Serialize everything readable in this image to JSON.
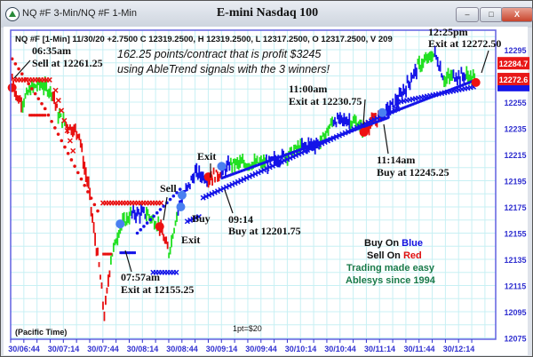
{
  "window": {
    "title": "NQ #F 3-Min/NQ #F 1-Min",
    "chart_title": "E-mini Nasdaq 100",
    "minimize_label": "–",
    "maximize_label": "□",
    "close_label": "X"
  },
  "colors": {
    "buy": "#1010e0",
    "sell": "#e01010",
    "neutral": "#22dd22",
    "grid": "#c8f0f4",
    "axis": "#3030d0",
    "brand": "#1a7a4a"
  },
  "chart_data": {
    "type": "candlestick-bars",
    "info_line": "NQ #F [1-Min] 11/30/20  +2.7500 C 12319.2500, H 12319.2500, L 12317.2500, O 12317.2500, V 209",
    "headline_1": "162.25 points/contract that is profit $3245",
    "headline_2": "using AbleTrend signals with the 3 winners!",
    "time_zone_label": "(Pacific Time)",
    "point_value_label": "1pt=$20",
    "x_ticks": [
      "30/06:44",
      "30/07:14",
      "30/07:44",
      "30/08:14",
      "30/08:44",
      "30/09:14",
      "30/09:44",
      "30/10:14",
      "30/10:44",
      "30/11:14",
      "30/11:44",
      "30/12:14"
    ],
    "y_ticks": [
      "12295",
      "12255",
      "12235",
      "12215",
      "12195",
      "12175",
      "12155",
      "12135",
      "12115",
      "12095",
      "12075"
    ],
    "ylim": [
      12075,
      12305
    ],
    "price_tags": [
      {
        "label": "12284.7",
        "price": 12284.7
      },
      {
        "label": "12272.6",
        "price": 12272.6
      }
    ],
    "prices": [
      [
        "06:35",
        12273,
        "red"
      ],
      [
        "06:39",
        12258,
        "red"
      ],
      [
        "06:43",
        12255,
        "green"
      ],
      [
        "06:49",
        12265,
        "green"
      ],
      [
        "06:56",
        12269,
        "green"
      ],
      [
        "07:06",
        12262,
        "red"
      ],
      [
        "07:10",
        12245,
        "green"
      ],
      [
        "07:16",
        12238,
        "red"
      ],
      [
        "07:26",
        12231,
        "red"
      ],
      [
        "07:30",
        12204,
        "red"
      ],
      [
        "07:33",
        12191,
        "red"
      ],
      [
        "07:37",
        12157,
        "red"
      ],
      [
        "07:41",
        12130,
        "red"
      ],
      [
        "07:45",
        12092,
        "red"
      ],
      [
        "07:50",
        12136,
        "green"
      ],
      [
        "07:57",
        12160,
        "green"
      ],
      [
        "08:06",
        12170,
        "blue"
      ],
      [
        "08:17",
        12170,
        "green"
      ],
      [
        "08:27",
        12160,
        "red"
      ],
      [
        "08:34",
        12140,
        "green"
      ],
      [
        "08:41",
        12174,
        "blue"
      ],
      [
        "08:47",
        12187,
        "blue"
      ],
      [
        "08:54",
        12201,
        "blue"
      ],
      [
        "09:04",
        12197,
        "red"
      ],
      [
        "09:14",
        12201,
        "blue"
      ],
      [
        "09:21",
        12208,
        "green"
      ],
      [
        "09:35",
        12208,
        "green"
      ],
      [
        "09:48",
        12208,
        "blue"
      ],
      [
        "10:02",
        12214,
        "green"
      ],
      [
        "10:15",
        12221,
        "blue"
      ],
      [
        "10:29",
        12224,
        "green"
      ],
      [
        "10:39",
        12241,
        "blue"
      ],
      [
        "10:52",
        12241,
        "green"
      ],
      [
        "11:02",
        12235,
        "red"
      ],
      [
        "11:16",
        12245,
        "blue"
      ],
      [
        "11:29",
        12258,
        "blue"
      ],
      [
        "11:43",
        12282,
        "green"
      ],
      [
        "11:56",
        12292,
        "blue"
      ],
      [
        "12:03",
        12272,
        "green"
      ],
      [
        "12:10",
        12275,
        "blue"
      ],
      [
        "12:20",
        12275,
        "green"
      ],
      [
        "12:27",
        12272,
        "red"
      ]
    ],
    "stops": [
      {
        "marker": "dot",
        "color": "red",
        "from": [
          "06:35",
          12288
        ],
        "to": [
          "07:00",
          12250
        ]
      },
      {
        "marker": "dot",
        "color": "red",
        "from": [
          "07:00",
          12250
        ],
        "to": [
          "07:42",
          12168
        ]
      },
      {
        "marker": "x",
        "color": "red",
        "from": [
          "06:37",
          12272
        ],
        "to": [
          "07:05",
          12272
        ]
      },
      {
        "marker": "x",
        "color": "red",
        "from": [
          "07:08",
          12264
        ],
        "to": [
          "07:22",
          12215
        ]
      },
      {
        "marker": "x",
        "color": "red",
        "from": [
          "07:44",
          12178
        ],
        "to": [
          "08:30",
          12178
        ]
      },
      {
        "marker": "dash",
        "color": "red",
        "from": [
          "06:48",
          12245
        ],
        "to": [
          "07:00",
          12245
        ]
      },
      {
        "marker": "dash",
        "color": "red",
        "from": [
          "07:44",
          12139
        ],
        "to": [
          "07:50",
          12139
        ]
      },
      {
        "marker": "dash",
        "color": "blue",
        "from": [
          "07:57",
          12140
        ],
        "to": [
          "08:08",
          12140
        ]
      },
      {
        "marker": "dot",
        "color": "blue",
        "from": [
          "08:10",
          12155
        ],
        "to": [
          "08:44",
          12190
        ]
      },
      {
        "marker": "x",
        "color": "blue",
        "from": [
          "08:22",
          12125
        ],
        "to": [
          "08:40",
          12125
        ]
      },
      {
        "marker": "x",
        "color": "blue",
        "from": [
          "08:48",
          12164
        ],
        "to": [
          "08:58",
          12168
        ]
      },
      {
        "marker": "x",
        "color": "blue",
        "from": [
          "09:00",
          12182
        ],
        "to": [
          "11:28",
          12250
        ]
      },
      {
        "marker": "x",
        "color": "blue",
        "from": [
          "11:28",
          12255
        ],
        "to": [
          "12:27",
          12267
        ]
      },
      {
        "marker": "dash",
        "color": "blue",
        "from": [
          "09:14",
          12197
        ],
        "to": [
          "11:20",
          12243
        ]
      },
      {
        "marker": "dash",
        "color": "blue",
        "from": [
          "11:20",
          12246
        ],
        "to": [
          "12:27",
          12272
        ]
      }
    ],
    "signals": [
      {
        "time": "06:35",
        "price": 12266,
        "color": "red",
        "text_1": "06:35am",
        "text_2": "Sell at 12261.25"
      },
      {
        "time": "07:57",
        "price": 12162,
        "color": "blue",
        "text_1": "07:57am",
        "text_2": "Exit at 12155.25"
      },
      {
        "time": "08:27",
        "price": 12160,
        "color": "red",
        "text_1": "Sell",
        "text_2": ""
      },
      {
        "time": "08:44",
        "price": 12184,
        "color": "blue",
        "text_1": "Buy",
        "text_2": ""
      },
      {
        "time": "08:43",
        "price": 12175,
        "color": "blue",
        "text_1": "Exit",
        "text_2": ""
      },
      {
        "time": "09:04",
        "price": 12198,
        "color": "red",
        "text_1": "Exit",
        "text_2": ""
      },
      {
        "time": "09:14",
        "price": 12206,
        "color": "blue",
        "text_1": "09:14",
        "text_2": "Buy at 12201.75"
      },
      {
        "time": "11:02",
        "price": 12232,
        "color": "red",
        "text_1": "11:00am",
        "text_2": "Exit at 12230.75"
      },
      {
        "time": "11:16",
        "price": 12247,
        "color": "blue",
        "text_1": "11:14am",
        "text_2": "Buy at 12245.25"
      },
      {
        "time": "12:27",
        "price": 12270,
        "color": "red",
        "text_1": "12:25pm",
        "text_2": "Exit at 12272.50"
      }
    ]
  },
  "legend": {
    "buy_prefix": "Buy On ",
    "buy_word": "Blue",
    "sell_prefix": "Sell On ",
    "sell_word": "Red",
    "brand_1": "Trading made easy",
    "brand_2": "Ablesys since 1994"
  }
}
